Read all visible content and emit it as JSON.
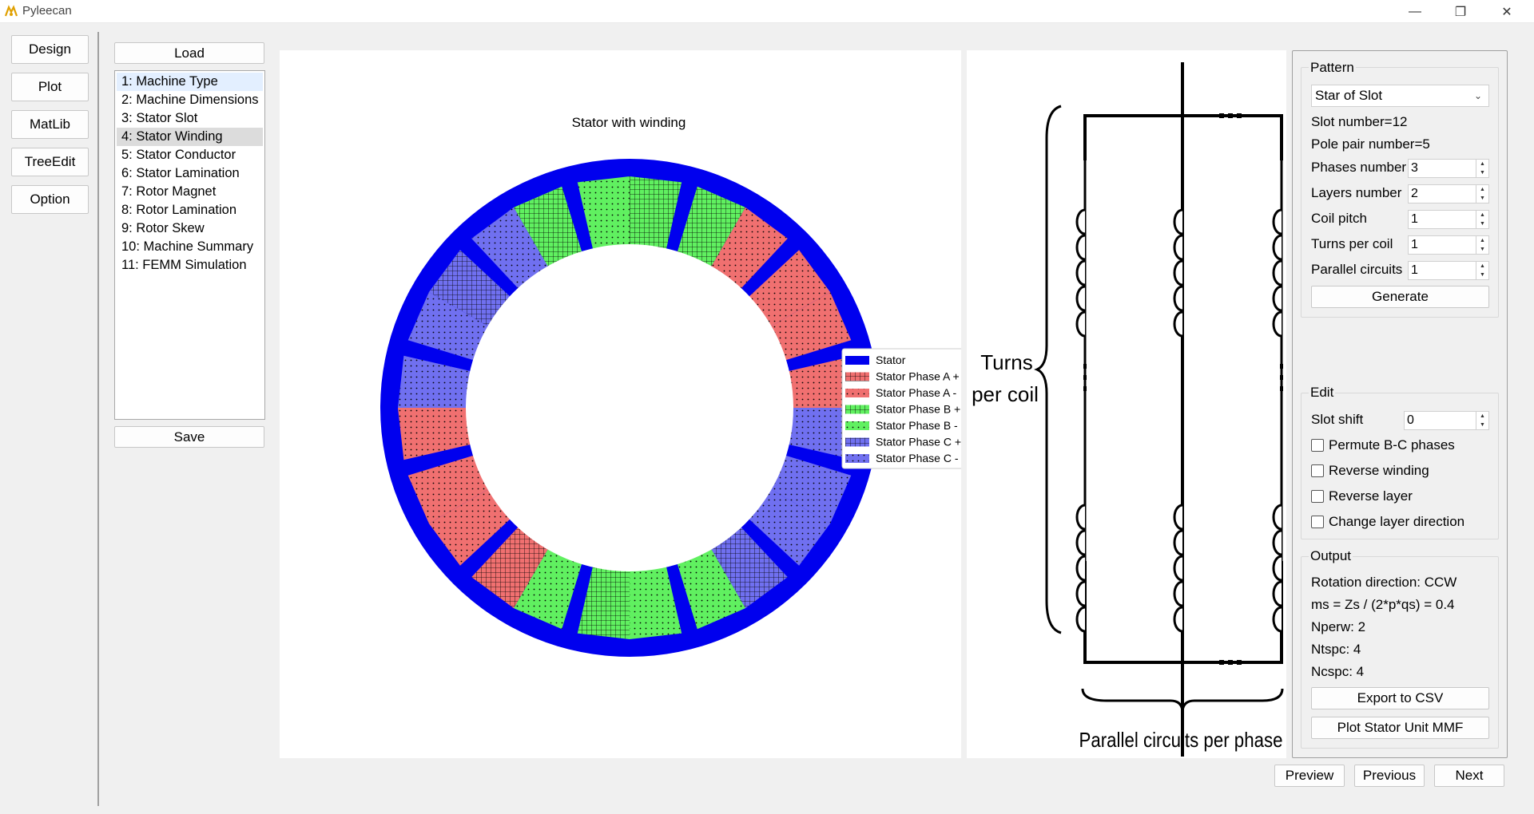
{
  "app": {
    "title": "Pyleecan"
  },
  "window_controls": {
    "minimize": "—",
    "restore": "❐",
    "close": "✕"
  },
  "nav": {
    "buttons": [
      {
        "label": "Design"
      },
      {
        "label": "Plot"
      },
      {
        "label": "MatLib"
      },
      {
        "label": "TreeEdit"
      },
      {
        "label": "Option"
      }
    ]
  },
  "steps": {
    "load_label": "Load",
    "save_label": "Save",
    "items": [
      {
        "label": "1: Machine Type"
      },
      {
        "label": "2: Machine Dimensions"
      },
      {
        "label": "3: Stator Slot"
      },
      {
        "label": "4: Stator Winding"
      },
      {
        "label": "5: Stator Conductor"
      },
      {
        "label": "6: Stator Lamination"
      },
      {
        "label": "7: Rotor Magnet"
      },
      {
        "label": "8: Rotor Lamination"
      },
      {
        "label": "9: Rotor Skew"
      },
      {
        "label": "10: Machine Summary"
      },
      {
        "label": "11: FEMM Simulation"
      }
    ],
    "selected_index": 0,
    "current_index": 3
  },
  "plot": {
    "title": "Stator with winding",
    "legend": [
      {
        "label": "Stator",
        "color": "#0000ee",
        "pattern": "solid"
      },
      {
        "label": "Stator Phase A +",
        "color": "#f07070",
        "pattern": "grid"
      },
      {
        "label": "Stator Phase A -",
        "color": "#f07070",
        "pattern": "dots"
      },
      {
        "label": "Stator Phase B +",
        "color": "#60f060",
        "pattern": "grid"
      },
      {
        "label": "Stator Phase B -",
        "color": "#60f060",
        "pattern": "dots"
      },
      {
        "label": "Stator Phase C +",
        "color": "#7070f0",
        "pattern": "grid"
      },
      {
        "label": "Stator Phase C -",
        "color": "#7070f0",
        "pattern": "dots"
      }
    ],
    "slot_count": 12,
    "slot_angles_deg": [
      90,
      60,
      30,
      0,
      -30,
      -60,
      -90,
      -120,
      -150,
      180,
      150,
      120
    ],
    "slot_layers": [
      {
        "left": "B-",
        "right": "B+"
      },
      {
        "left": "B+",
        "right": "A-"
      },
      {
        "left": "A-",
        "right": "A-"
      },
      {
        "left": "A-",
        "right": "C-"
      },
      {
        "left": "C-",
        "right": "C-"
      },
      {
        "left": "C+",
        "right": "B-"
      },
      {
        "left": "B-",
        "right": "B+"
      },
      {
        "left": "B-",
        "right": "A+"
      },
      {
        "left": "A-",
        "right": "A-"
      },
      {
        "left": "A-",
        "right": "C-"
      },
      {
        "left": "C-",
        "right": "C+"
      },
      {
        "left": "C-",
        "right": "B+"
      }
    ]
  },
  "diagram": {
    "turns_label": "Turns\nper coil",
    "parallel_label": "Parallel circuits per phase"
  },
  "pattern": {
    "title": "Pattern",
    "type_value": "Star of Slot",
    "slot_number": "Slot number=12",
    "pole_pair": "Pole pair number=5",
    "fields": [
      {
        "label": "Phases number",
        "value": "3"
      },
      {
        "label": "Layers number",
        "value": "2"
      },
      {
        "label": "Coil pitch",
        "value": "1"
      },
      {
        "label": "Turns per coil",
        "value": "1"
      },
      {
        "label": "Parallel circuits",
        "value": "1"
      }
    ],
    "generate_label": "Generate"
  },
  "edit": {
    "title": "Edit",
    "slot_shift_label": "Slot shift",
    "slot_shift_value": "0",
    "checks": [
      {
        "label": "Permute B-C phases",
        "checked": false
      },
      {
        "label": "Reverse winding",
        "checked": false
      },
      {
        "label": "Reverse layer",
        "checked": false
      },
      {
        "label": "Change layer direction",
        "checked": false
      }
    ]
  },
  "output": {
    "title": "Output",
    "lines": [
      "Rotation direction: CCW",
      "ms = Zs / (2*p*qs) = 0.4",
      "Nperw: 2",
      "Ntspc: 4",
      "Ncspc: 4"
    ],
    "export_label": "Export to CSV",
    "mmf_label": "Plot Stator Unit MMF"
  },
  "footer": {
    "preview_label": "Preview",
    "previous_label": "Previous",
    "next_label": "Next"
  }
}
